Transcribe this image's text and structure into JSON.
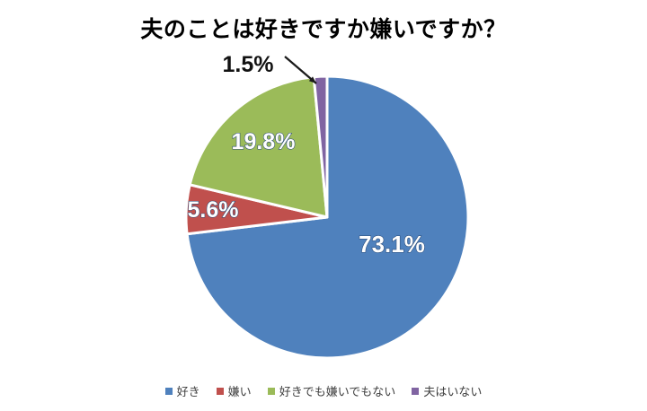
{
  "chart_data": {
    "type": "pie",
    "title": "夫のことは好きですか嫌いですか？",
    "labels": [
      "好き",
      "嫌い",
      "好きでも嫌いでもない",
      "夫はいない"
    ],
    "values": [
      73.1,
      5.6,
      19.8,
      1.5
    ],
    "value_labels": [
      "73.1%",
      "5.6%",
      "19.8%",
      "1.5%"
    ],
    "colors": [
      "#4F81BD",
      "#C0504D",
      "#9BBB59",
      "#8064A2"
    ],
    "slice_border_color": "#ffffff",
    "inside_label_color": "#ffffff",
    "inside_label_outline_color": "#2a4a77",
    "outside_label_color": "#111111",
    "leader_line_color": "#1a1a1a",
    "start_angle_deg": 0,
    "direction": "clockwise",
    "legend_position": "bottom",
    "background_color": "#ffffff"
  }
}
